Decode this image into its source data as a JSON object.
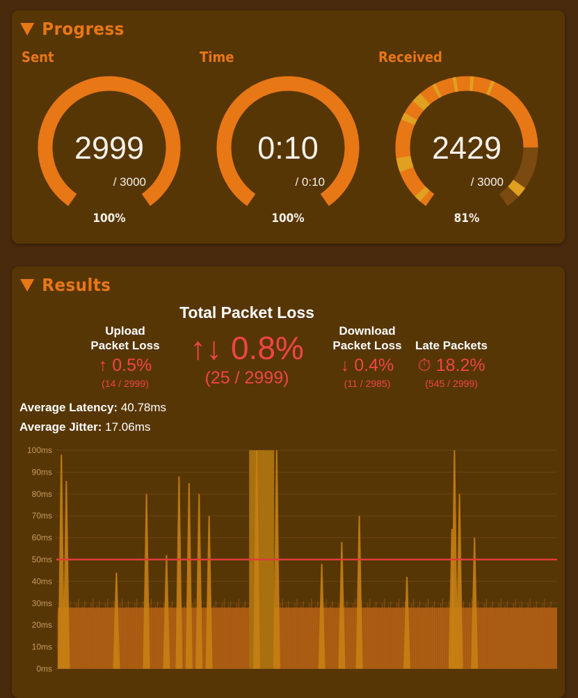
{
  "progress": {
    "title": "Progress",
    "gauges": [
      {
        "label": "Sent",
        "value": "2999",
        "total": "/ 3000",
        "percent": "100%",
        "fraction": 0.9997
      },
      {
        "label": "Time",
        "value": "0:10",
        "total": "/ 0:10",
        "percent": "100%",
        "fraction": 1.0
      },
      {
        "label": "Received",
        "value": "2429",
        "total": "/ 3000",
        "percent": "81%",
        "fraction": 0.81
      }
    ]
  },
  "results": {
    "title": "Results",
    "total_packet_loss": {
      "title": "Total Packet Loss",
      "value": "↑↓ 0.8%",
      "count": "(25 / 2999)"
    },
    "upload_packet_loss": {
      "title_line1": "Upload",
      "title_line2": "Packet Loss",
      "value": "↑ 0.5%",
      "count": "(14 / 2999)"
    },
    "download_packet_loss": {
      "title_line1": "Download",
      "title_line2": "Packet Loss",
      "value": "↓ 0.4%",
      "count": "(11 / 2985)"
    },
    "late_packets": {
      "title": "Late Packets",
      "value": "⏱ 18.2%",
      "count": "(545 / 2999)"
    },
    "average_latency": {
      "label": "Average Latency:",
      "value": "40.78ms"
    },
    "average_jitter": {
      "label": "Average Jitter:",
      "value": "17.06ms"
    }
  },
  "colors": {
    "background": "#4a2a0c",
    "panel": "#573606",
    "accent": "#e87716",
    "loss_red": "#f04545",
    "threshold_line": "#e03c3c",
    "chart_bar": "#a85a12",
    "chart_spike": "#c77f14"
  },
  "chart_data": {
    "type": "area",
    "ylabel": "",
    "xlabel": "",
    "y_ticks": [
      "0ms",
      "10ms",
      "20ms",
      "30ms",
      "40ms",
      "50ms",
      "60ms",
      "70ms",
      "80ms",
      "90ms",
      "100ms"
    ],
    "ylim": [
      0,
      100
    ],
    "threshold_ms": 50,
    "baseline_ms": 28,
    "spikes": [
      {
        "x": 0.01,
        "peak_ms": 98
      },
      {
        "x": 0.02,
        "peak_ms": 86
      },
      {
        "x": 0.12,
        "peak_ms": 44
      },
      {
        "x": 0.18,
        "peak_ms": 80
      },
      {
        "x": 0.22,
        "peak_ms": 52
      },
      {
        "x": 0.245,
        "peak_ms": 88
      },
      {
        "x": 0.265,
        "peak_ms": 85
      },
      {
        "x": 0.285,
        "peak_ms": 80
      },
      {
        "x": 0.305,
        "peak_ms": 70
      },
      {
        "x": 0.4,
        "peak_ms": 100
      },
      {
        "x": 0.44,
        "peak_ms": 100
      },
      {
        "x": 0.53,
        "peak_ms": 48
      },
      {
        "x": 0.57,
        "peak_ms": 58
      },
      {
        "x": 0.605,
        "peak_ms": 70
      },
      {
        "x": 0.7,
        "peak_ms": 42
      },
      {
        "x": 0.79,
        "peak_ms": 64
      },
      {
        "x": 0.795,
        "peak_ms": 100
      },
      {
        "x": 0.805,
        "peak_ms": 80
      },
      {
        "x": 0.835,
        "peak_ms": 60
      }
    ],
    "late_block": {
      "x_start": 0.385,
      "x_end": 0.435,
      "value_ms": 100
    }
  }
}
